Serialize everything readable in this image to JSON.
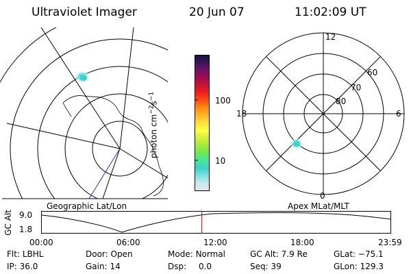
{
  "header": {
    "title": "Ultraviolet Imager",
    "date": "20 Jun 07",
    "time": "11:02:09 UT"
  },
  "colorbar": {
    "unit_main": "photon cm",
    "unit_sup1": "−2",
    "unit_mid": "s",
    "unit_sup2": "−1",
    "ticks": [
      {
        "label": "100",
        "value": 100
      },
      {
        "label": "10",
        "value": 10
      }
    ],
    "colors": [
      "#e6e6e6",
      "#c8e8f0",
      "#7ee0e0",
      "#3cd2c8",
      "#46e69b",
      "#6ee656",
      "#a0ea3c",
      "#d2ee3c",
      "#ffff46",
      "#ffe13c",
      "#ffb428",
      "#ff8c14",
      "#ff5014",
      "#f01e1e",
      "#c81432",
      "#a00a50",
      "#6e1464",
      "#3c145a",
      "#14143c"
    ]
  },
  "left_map": {
    "label": "Geographic Lat/Lon"
  },
  "right_map": {
    "label": "Apex MLat/MLT",
    "hour_labels": {
      "top": "12",
      "bottom": "0",
      "left": "18",
      "right": "6"
    },
    "lat_labels": [
      "60",
      "70",
      "80"
    ]
  },
  "timeline": {
    "axis_label": "GC Alt",
    "y_ticks": [
      "9.0",
      "1.8"
    ],
    "x_ticks": [
      "00:00",
      "06:00",
      "12:00",
      "18:00",
      "23:59"
    ],
    "current_time_fraction": 0.459
  },
  "status": {
    "row1": [
      {
        "key": "Flt:",
        "value": "LBHL"
      },
      {
        "key": "Door:",
        "value": "Open"
      },
      {
        "key": "Mode:",
        "value": "Normal"
      },
      {
        "key": "GC Alt:",
        "value": "7.9 Re"
      },
      {
        "key": "GLat:",
        "value": "−75.1"
      }
    ],
    "row2": [
      {
        "key": "IP:",
        "value": "36.0"
      },
      {
        "key": "Gain:",
        "value": "14"
      },
      {
        "key": "Dsp:",
        "value": "0.0"
      },
      {
        "key": "Seq:",
        "value": "39"
      },
      {
        "key": "GLon:",
        "value": "129.3"
      }
    ]
  }
}
